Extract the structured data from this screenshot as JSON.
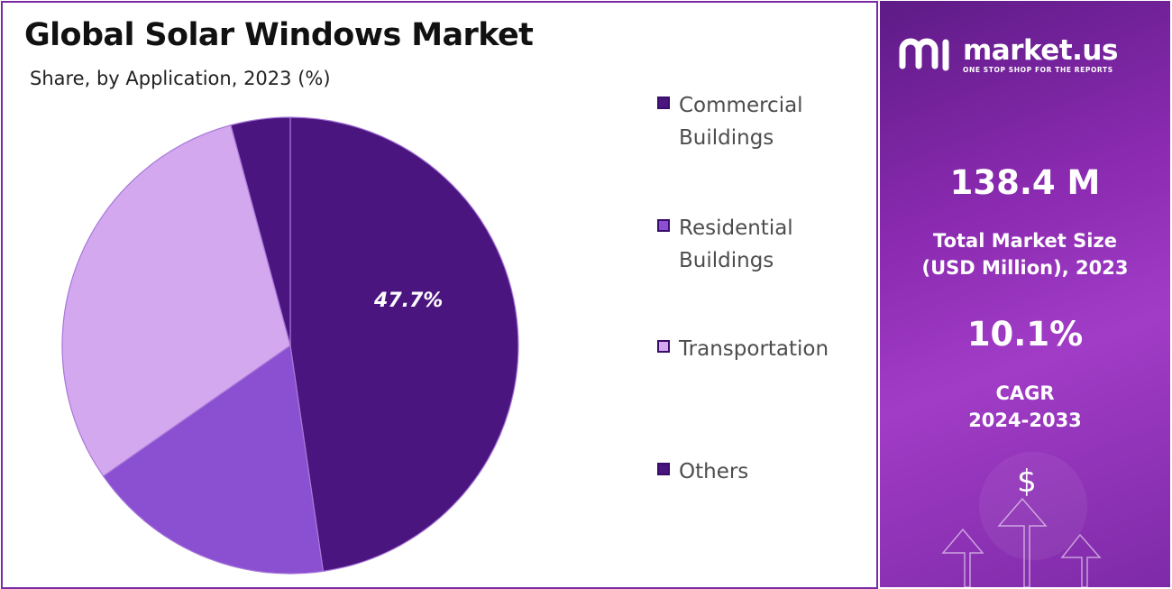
{
  "title": "Global Solar Windows Market",
  "subtitle": "Share, by Application, 2023 (%)",
  "chart_data": {
    "type": "pie",
    "title": "Global Solar Windows Market",
    "subtitle": "Share, by Application, 2023 (%)",
    "legend_position": "right",
    "start_angle_deg": 0,
    "direction": "clockwise",
    "slices": [
      {
        "label": "Commercial Buildings",
        "value": 47.7,
        "color": "#4b1580",
        "data_label": "47.7%"
      },
      {
        "label": "Residential Buildings",
        "value": 17.6,
        "color": "#8b4fd1",
        "data_label": ""
      },
      {
        "label": "Transportation",
        "value": 30.5,
        "color": "#d3a8ee",
        "data_label": ""
      },
      {
        "label": "Others",
        "value": 4.2,
        "color": "#4b1580",
        "data_label": ""
      }
    ]
  },
  "info_panel": {
    "logo_name": "market.us",
    "logo_tagline": "ONE STOP SHOP FOR THE REPORTS",
    "market_size_value": "138.4 M",
    "market_size_label_line1": "Total Market Size",
    "market_size_label_line2": "(USD Million), 2023",
    "cagr_value": "10.1%",
    "cagr_label_line1": "CAGR",
    "cagr_label_line2": "2024-2033",
    "currency_symbol": "$"
  }
}
